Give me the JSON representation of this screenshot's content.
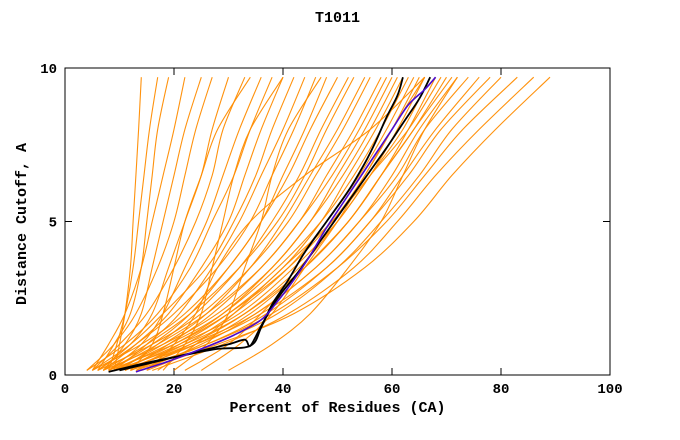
{
  "title": "T1011",
  "axes": {
    "x_label": "Percent of Residues (CA)",
    "y_label": "Distance Cutoff, A"
  },
  "chart_data": {
    "type": "line",
    "title": "T1011",
    "xlabel": "Percent of Residues (CA)",
    "ylabel": "Distance Cutoff, A",
    "xlim": [
      0,
      100
    ],
    "ylim": [
      0,
      10
    ],
    "x_ticks": [
      0,
      20,
      40,
      60,
      80,
      100
    ],
    "y_ticks": [
      0,
      5,
      10
    ],
    "grid": false,
    "legend": "none",
    "colors": {
      "ensemble": "#ff8c00",
      "highlight": "#000000",
      "reference": "#4b0bce",
      "axis": "#000000"
    },
    "y_anchors": [
      0.15,
      1,
      2,
      3.5,
      5,
      6.5,
      8,
      9.7
    ],
    "orange_curves": [
      [
        9,
        10,
        11,
        12,
        12.5,
        13,
        13.5,
        14
      ],
      [
        8,
        9.5,
        11,
        12.5,
        13.5,
        14.5,
        15.5,
        17
      ],
      [
        6,
        9,
        12,
        14,
        15,
        16,
        17,
        19
      ],
      [
        5,
        8,
        11,
        14,
        16,
        18,
        20,
        22
      ],
      [
        7,
        11,
        14,
        16,
        18,
        20,
        22,
        25
      ],
      [
        4,
        9,
        13,
        17,
        20,
        22,
        24,
        27
      ],
      [
        6,
        12,
        16,
        19,
        22,
        25,
        27,
        30
      ],
      [
        5,
        10,
        15,
        20,
        24,
        27,
        29,
        33
      ],
      [
        8,
        14,
        18,
        22,
        26,
        29,
        32,
        36
      ],
      [
        4,
        11,
        17,
        23,
        27,
        31,
        34,
        38
      ],
      [
        7,
        13,
        19,
        25,
        30,
        33,
        36,
        40
      ],
      [
        5,
        12,
        18,
        26,
        31,
        35,
        38,
        42
      ],
      [
        9,
        15,
        21,
        27,
        32,
        36,
        40,
        44
      ],
      [
        6,
        13,
        20,
        28,
        34,
        38,
        42,
        46
      ],
      [
        8,
        16,
        23,
        30,
        36,
        40,
        44,
        48
      ],
      [
        5,
        14,
        22,
        30,
        36,
        41,
        45,
        50
      ],
      [
        10,
        17,
        24,
        32,
        38,
        43,
        47,
        52
      ],
      [
        7,
        15,
        23,
        32,
        39,
        44,
        48,
        53
      ],
      [
        9,
        18,
        26,
        34,
        40,
        45,
        50,
        55
      ],
      [
        6,
        16,
        25,
        34,
        41,
        46,
        51,
        56
      ],
      [
        11,
        19,
        27,
        36,
        43,
        48,
        53,
        58
      ],
      [
        8,
        17,
        26,
        36,
        43,
        49,
        54,
        59
      ],
      [
        10,
        20,
        29,
        38,
        45,
        50,
        55,
        60
      ],
      [
        7,
        18,
        28,
        38,
        45,
        51,
        56,
        61
      ],
      [
        12,
        21,
        30,
        40,
        47,
        52,
        57,
        62
      ],
      [
        9,
        19,
        29,
        39,
        47,
        53,
        58,
        63
      ],
      [
        11,
        22,
        31,
        41,
        48,
        54,
        59,
        64
      ],
      [
        8,
        20,
        30,
        41,
        49,
        55,
        60,
        65
      ],
      [
        13,
        23,
        33,
        43,
        50,
        56,
        61,
        66
      ],
      [
        10,
        21,
        32,
        42,
        50,
        56,
        62,
        67
      ],
      [
        12,
        24,
        34,
        44,
        52,
        58,
        63,
        68
      ],
      [
        9,
        22,
        33,
        44,
        52,
        58,
        64,
        70
      ],
      [
        14,
        25,
        35,
        46,
        54,
        60,
        65,
        72
      ],
      [
        11,
        23,
        35,
        46,
        54,
        61,
        66,
        74
      ],
      [
        13,
        26,
        37,
        48,
        56,
        62,
        68,
        76
      ],
      [
        10,
        24,
        36,
        48,
        56,
        63,
        69,
        78
      ],
      [
        15,
        27,
        39,
        50,
        58,
        65,
        71,
        80
      ],
      [
        12,
        26,
        38,
        50,
        59,
        66,
        73,
        83
      ],
      [
        16,
        29,
        41,
        53,
        61,
        68,
        76,
        86
      ],
      [
        14,
        28,
        42,
        55,
        64,
        71,
        79,
        89
      ],
      [
        12,
        16,
        18,
        20,
        22,
        25,
        28,
        34
      ],
      [
        18,
        22,
        25,
        27,
        29,
        31,
        34,
        40
      ],
      [
        20,
        26,
        30,
        33,
        36,
        38,
        41,
        47
      ],
      [
        15,
        20,
        24,
        28,
        34,
        44,
        56,
        66
      ],
      [
        25,
        32,
        38,
        44,
        50,
        55,
        60,
        66
      ],
      [
        30,
        38,
        45,
        52,
        58,
        62,
        66,
        72
      ],
      [
        22,
        30,
        36,
        44,
        52,
        58,
        64,
        71
      ],
      [
        17,
        24,
        31,
        40,
        49,
        56,
        63,
        69
      ]
    ],
    "black_curves": [
      [
        [
          8,
          0.1
        ],
        [
          15,
          0.4
        ],
        [
          22,
          0.65
        ],
        [
          28,
          0.85
        ],
        [
          34,
          0.95
        ],
        [
          36,
          1.55
        ],
        [
          38,
          2.3
        ],
        [
          41,
          3.1
        ],
        [
          44,
          4.0
        ],
        [
          48,
          5.0
        ],
        [
          52,
          6.0
        ],
        [
          55,
          6.9
        ],
        [
          57,
          7.6
        ],
        [
          59,
          8.4
        ],
        [
          61,
          9.1
        ],
        [
          62,
          9.7
        ]
      ],
      [
        [
          10,
          0.15
        ],
        [
          17,
          0.45
        ],
        [
          24,
          0.75
        ],
        [
          30,
          1.0
        ],
        [
          33,
          1.15
        ],
        [
          34,
          0.95
        ],
        [
          36,
          1.6
        ],
        [
          39,
          2.5
        ],
        [
          43,
          3.4
        ],
        [
          47,
          4.4
        ],
        [
          51,
          5.4
        ],
        [
          55,
          6.4
        ],
        [
          59,
          7.4
        ],
        [
          62,
          8.2
        ],
        [
          65,
          9.0
        ],
        [
          67,
          9.7
        ]
      ]
    ],
    "blue_curve": [
      [
        13,
        0.1
      ],
      [
        19,
        0.45
      ],
      [
        25,
        0.85
      ],
      [
        31,
        1.3
      ],
      [
        36,
        1.8
      ],
      [
        39,
        2.4
      ],
      [
        42,
        3.1
      ],
      [
        45,
        3.9
      ],
      [
        48,
        4.8
      ],
      [
        51,
        5.6
      ],
      [
        54,
        6.4
      ],
      [
        57,
        7.2
      ],
      [
        60,
        8.0
      ],
      [
        63,
        8.8
      ],
      [
        66,
        9.3
      ],
      [
        68,
        9.7
      ]
    ]
  }
}
